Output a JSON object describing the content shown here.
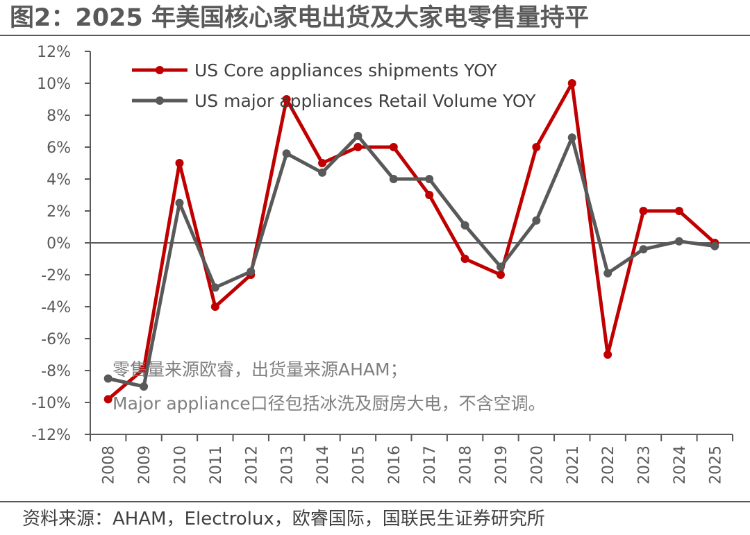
{
  "title": "图2：2025 年美国核心家电出货及大家电零售量持平",
  "source": "资料来源：AHAM，Electrolux，欧睿国际，国联民生证券研究所",
  "chart_data": {
    "type": "line",
    "x": [
      "2008",
      "2009",
      "2010",
      "2011",
      "2012",
      "2013",
      "2014",
      "2015",
      "2016",
      "2017",
      "2018",
      "2019",
      "2020",
      "2021",
      "2022",
      "2023",
      "2024",
      "2025"
    ],
    "ylim": [
      -12,
      12
    ],
    "yticks": [
      -12,
      -10,
      -8,
      -6,
      -4,
      -2,
      0,
      2,
      4,
      6,
      8,
      10,
      12
    ],
    "ytick_labels": [
      "-12%",
      "-10%",
      "-8%",
      "-6%",
      "-4%",
      "-2%",
      "0%",
      "2%",
      "4%",
      "6%",
      "8%",
      "10%",
      "12%"
    ],
    "grid": false,
    "legend_position": "top-left",
    "series": [
      {
        "name": "US Core appliances shipments YOY",
        "color": "#C00000",
        "values": [
          -9.8,
          -7.9,
          5.0,
          -4.0,
          -2.0,
          9.0,
          5.0,
          6.0,
          6.0,
          3.0,
          -1.0,
          -2.0,
          6.0,
          10.0,
          -7.0,
          2.0,
          2.0,
          0.0
        ]
      },
      {
        "name": "US major appliances Retail Volume YOY",
        "color": "#595959",
        "values": [
          -8.5,
          -9.0,
          2.5,
          -2.8,
          -1.8,
          5.6,
          4.4,
          6.7,
          4.0,
          4.0,
          1.1,
          -1.5,
          1.4,
          6.6,
          -1.9,
          -0.4,
          0.1,
          -0.2
        ]
      }
    ],
    "annotations": [
      "零售量来源欧睿，出货量来源AHAM；",
      "Major appliance口径包括冰洗及厨房大电，不含空调。"
    ]
  }
}
